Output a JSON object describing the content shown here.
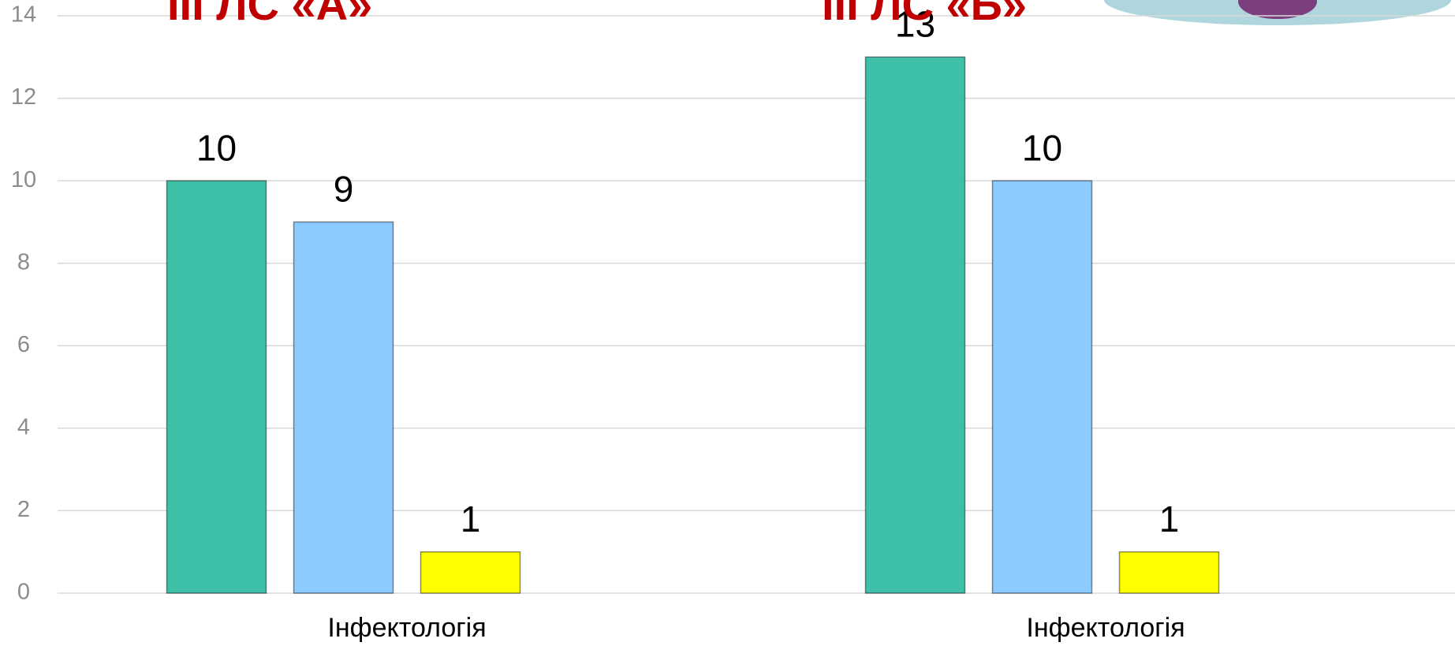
{
  "chart_data": {
    "type": "bar",
    "annotations": [
      "III ЛС «А»",
      "III ЛС «Б»"
    ],
    "categories": [
      "Інфектологія",
      "Інфектологія"
    ],
    "series": [
      {
        "color": "#3dbfa8",
        "values": [
          10,
          13
        ]
      },
      {
        "color": "#8ccbff",
        "values": [
          9,
          10
        ]
      },
      {
        "color": "#ffff00",
        "values": [
          1,
          1
        ]
      }
    ],
    "ylim": [
      0,
      14
    ],
    "yticks": [
      0,
      2,
      4,
      6,
      8,
      10,
      12,
      14
    ],
    "grid": true
  }
}
